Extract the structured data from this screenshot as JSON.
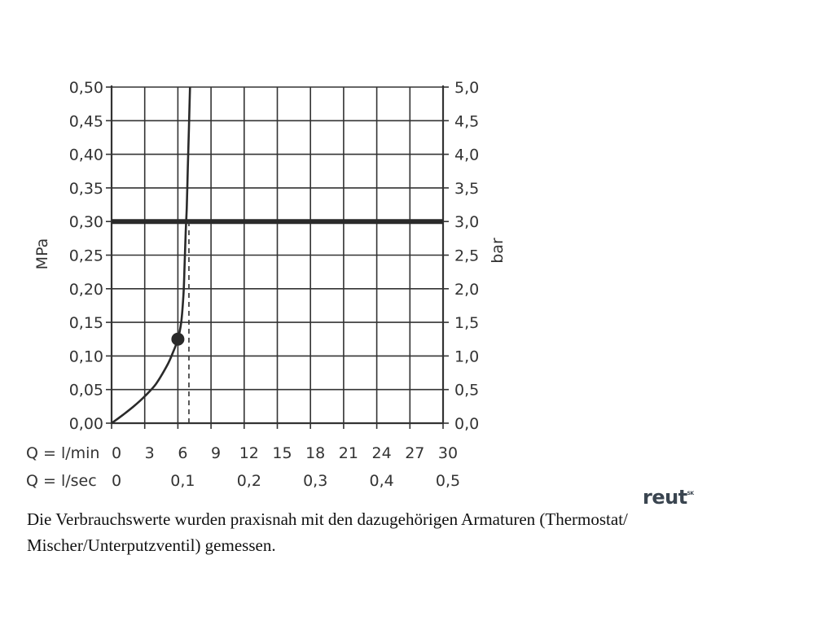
{
  "chart_data": {
    "type": "line",
    "ylabel_left": "MPa",
    "ylabel_right": "bar",
    "y_ticks_left": [
      "0,00",
      "0,05",
      "0,10",
      "0,15",
      "0,20",
      "0,25",
      "0,30",
      "0,35",
      "0,40",
      "0,45",
      "0,50"
    ],
    "y_ticks_right": [
      "0,0",
      "0,5",
      "1,0",
      "1,5",
      "2,0",
      "2,5",
      "3,0",
      "3,5",
      "4,0",
      "4,5",
      "5,0"
    ],
    "x_label_primary": "Q = l/min",
    "x_ticks_primary": [
      "0",
      "3",
      "6",
      "9",
      "12",
      "15",
      "18",
      "21",
      "24",
      "27",
      "30"
    ],
    "x_label_secondary": "Q = l/sec",
    "x_ticks_secondary": [
      "0",
      "0,1",
      "0,2",
      "0,3",
      "0,4",
      "0,5"
    ],
    "xlim": [
      0,
      30
    ],
    "ylim": [
      0,
      0.5
    ],
    "grid": true,
    "series": [
      {
        "x": [
          0,
          1,
          2,
          3,
          4,
          5,
          5.5,
          6,
          6.3,
          6.5,
          6.6,
          6.7,
          6.8,
          6.9,
          7.0,
          7.1
        ],
        "y": [
          0,
          0.012,
          0.025,
          0.04,
          0.058,
          0.085,
          0.103,
          0.125,
          0.15,
          0.19,
          0.23,
          0.28,
          0.32,
          0.38,
          0.44,
          0.5
        ]
      }
    ],
    "highlight_point": {
      "x": 6,
      "y": 0.125
    },
    "reference_line": {
      "y": 0.3
    },
    "dashed_line": {
      "x": 7,
      "y_from": 0,
      "y_to": 0.3
    }
  },
  "caption": "Die Verbrauchswerte wurden praxisnah mit den dazugehörigen Armaturen (Thermostat/ Mischer/Unterputzventil) gemessen.",
  "logo": {
    "text": "reut",
    "sup": "SK"
  }
}
